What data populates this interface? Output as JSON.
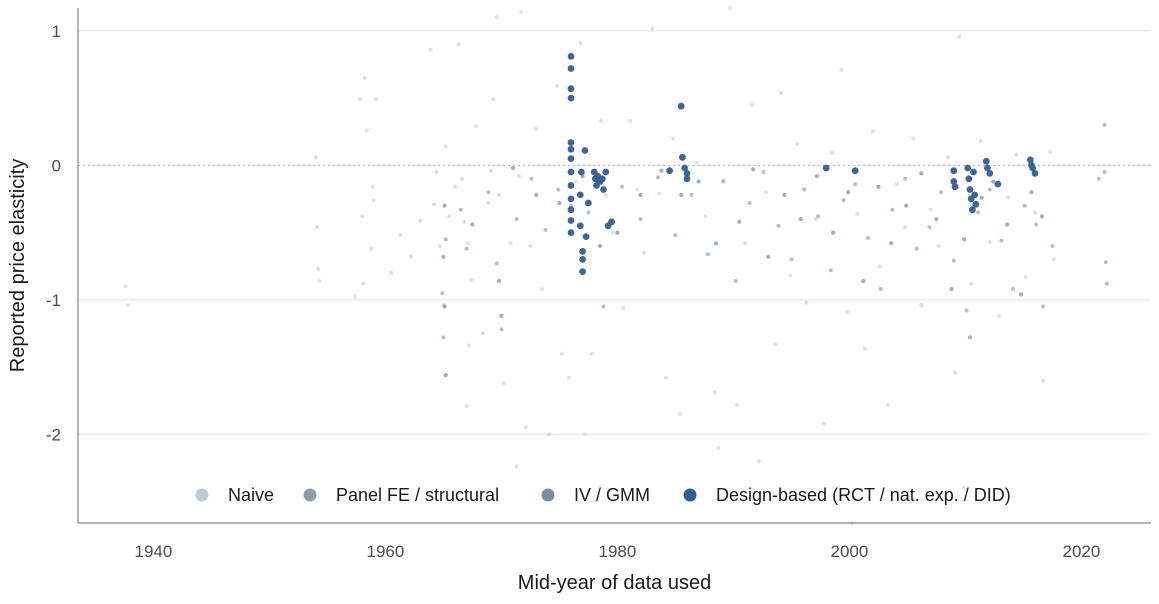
{
  "chart_data": {
    "type": "scatter",
    "title": "",
    "xlabel": "Mid-year of data used",
    "ylabel": "Reported price elasticity",
    "xlim": [
      1933.5,
      2026
    ],
    "ylim": [
      -2.66,
      1.17
    ],
    "x_ticks": [
      1940,
      1960,
      1980,
      2000,
      2020
    ],
    "y_ticks": [
      -2,
      -1,
      0,
      1
    ],
    "y_tick_labels": [
      "-2",
      "-1",
      "0",
      "1"
    ],
    "reference_line": 0,
    "grid": "horizontal",
    "legend_position": "bottom-inside",
    "series": [
      {
        "name": "Naive",
        "color": "#c0cad5",
        "points": [
          [
            1937.6,
            -0.9
          ],
          [
            1937.8,
            -1.04
          ],
          [
            1954.0,
            0.06
          ],
          [
            1954.1,
            -0.46
          ],
          [
            1954.2,
            -0.77
          ],
          [
            1954.3,
            -0.86
          ],
          [
            1957.4,
            -0.98
          ],
          [
            1957.8,
            0.49
          ],
          [
            1958.0,
            -0.38
          ],
          [
            1958.1,
            -0.88
          ],
          [
            1958.2,
            0.65
          ],
          [
            1958.4,
            0.26
          ],
          [
            1958.8,
            -0.62
          ],
          [
            1958.9,
            -0.16
          ],
          [
            1959.0,
            -0.26
          ],
          [
            1959.2,
            0.49
          ],
          [
            1960.5,
            -0.8
          ],
          [
            1961.3,
            -0.52
          ],
          [
            1962.2,
            -0.68
          ],
          [
            1963.0,
            -0.41
          ],
          [
            1963.9,
            0.86
          ],
          [
            1964.2,
            -0.29
          ],
          [
            1964.4,
            -0.05
          ],
          [
            1964.7,
            -0.6
          ],
          [
            1965.0,
            -1.04
          ],
          [
            1965.2,
            0.14
          ],
          [
            1965.5,
            -0.38
          ],
          [
            1966.0,
            -0.16
          ],
          [
            1966.3,
            0.9
          ],
          [
            1966.6,
            -0.1
          ],
          [
            1966.8,
            -0.42
          ],
          [
            1967.0,
            -1.79
          ],
          [
            1967.1,
            -0.58
          ],
          [
            1967.2,
            -1.34
          ],
          [
            1967.4,
            -0.85
          ],
          [
            1967.8,
            0.29
          ],
          [
            1968.4,
            -1.25
          ],
          [
            1968.9,
            -0.28
          ],
          [
            1969.1,
            -0.04
          ],
          [
            1969.3,
            0.49
          ],
          [
            1969.6,
            1.1
          ],
          [
            1969.8,
            -0.22
          ],
          [
            1970.2,
            -1.62
          ],
          [
            1970.8,
            -0.58
          ],
          [
            1971.3,
            -2.24
          ],
          [
            1971.5,
            -0.08
          ],
          [
            1971.7,
            1.14
          ],
          [
            1972.1,
            -1.95
          ],
          [
            1972.5,
            -0.6
          ],
          [
            1973.0,
            0.27
          ],
          [
            1973.5,
            -0.92
          ],
          [
            1974.1,
            -2.0
          ],
          [
            1974.8,
            0.59
          ],
          [
            1975.2,
            -1.4
          ],
          [
            1975.8,
            -1.58
          ],
          [
            1976.4,
            -0.12
          ],
          [
            1976.8,
            0.91
          ],
          [
            1977.2,
            -2.0
          ],
          [
            1977.8,
            -1.4
          ],
          [
            1978.6,
            0.33
          ],
          [
            1979.0,
            -0.22
          ],
          [
            1979.6,
            -0.5
          ],
          [
            1980.5,
            -1.06
          ],
          [
            1981.1,
            0.33
          ],
          [
            1981.7,
            -0.18
          ],
          [
            1982.3,
            -0.65
          ],
          [
            1983.0,
            1.02
          ],
          [
            1983.6,
            -0.21
          ],
          [
            1984.2,
            -1.58
          ],
          [
            1984.8,
            0.2
          ],
          [
            1985.4,
            -1.85
          ],
          [
            1986.1,
            -0.06
          ],
          [
            1986.8,
            0.02
          ],
          [
            1987.6,
            -0.38
          ],
          [
            1988.4,
            -1.69
          ],
          [
            1988.7,
            -2.1
          ],
          [
            1989.2,
            -0.11
          ],
          [
            1989.7,
            1.17
          ],
          [
            1990.3,
            -1.78
          ],
          [
            1991.0,
            -0.58
          ],
          [
            1991.6,
            0.45
          ],
          [
            1992.2,
            -2.2
          ],
          [
            1992.8,
            -0.2
          ],
          [
            1993.6,
            -1.33
          ],
          [
            1994.1,
            0.54
          ],
          [
            1994.9,
            -0.82
          ],
          [
            1995.5,
            0.16
          ],
          [
            1996.3,
            -1.02
          ],
          [
            1997.1,
            -0.4
          ],
          [
            1997.8,
            -1.92
          ],
          [
            1998.5,
            0.09
          ],
          [
            1999.3,
            0.71
          ],
          [
            1999.8,
            -1.09
          ],
          [
            2000.2,
            -2.66
          ],
          [
            2000.7,
            -0.36
          ],
          [
            2001.3,
            -1.36
          ],
          [
            2002.0,
            0.25
          ],
          [
            2002.6,
            -0.75
          ],
          [
            2003.3,
            -1.78
          ],
          [
            2004.1,
            -0.14
          ],
          [
            2004.8,
            -0.46
          ],
          [
            2005.5,
            0.2
          ],
          [
            2006.2,
            -1.04
          ],
          [
            2007.0,
            -0.33
          ],
          [
            2007.7,
            -0.6
          ],
          [
            2008.5,
            0.06
          ],
          [
            2009.1,
            -1.54
          ],
          [
            2009.5,
            0.96
          ],
          [
            2009.9,
            -2.4
          ],
          [
            2010.5,
            -0.88
          ],
          [
            2011.3,
            0.18
          ],
          [
            2012.1,
            -0.57
          ],
          [
            2012.9,
            -1.12
          ],
          [
            2013.7,
            -0.24
          ],
          [
            2014.4,
            0.08
          ],
          [
            2015.2,
            -0.83
          ],
          [
            2016.0,
            -0.35
          ],
          [
            2016.7,
            -1.6
          ],
          [
            2017.3,
            0.1
          ],
          [
            2017.6,
            -0.7
          ]
        ]
      },
      {
        "name": "Panel FE / structural",
        "color": "#8c9eb0",
        "points": [
          [
            1964.9,
            -0.95
          ],
          [
            1965.0,
            -1.28
          ],
          [
            1965.2,
            -0.55
          ],
          [
            1966.5,
            -0.33
          ],
          [
            1967.0,
            -0.62
          ],
          [
            1968.9,
            -0.2
          ],
          [
            1969.6,
            -0.73
          ],
          [
            1970.0,
            -1.22
          ],
          [
            1971.3,
            -0.4
          ],
          [
            1972.6,
            -0.1
          ],
          [
            1973.8,
            -0.48
          ],
          [
            1974.9,
            -0.18
          ],
          [
            1976.0,
            -0.3
          ],
          [
            1977.5,
            -0.35
          ],
          [
            1978.8,
            -1.05
          ],
          [
            1980.4,
            -0.16
          ],
          [
            1982.0,
            -0.4
          ],
          [
            1983.5,
            -0.09
          ],
          [
            1985.0,
            -0.52
          ],
          [
            1986.4,
            -0.22
          ],
          [
            1987.8,
            -0.66
          ],
          [
            1989.1,
            -0.12
          ],
          [
            1990.2,
            -0.86
          ],
          [
            1991.4,
            -0.28
          ],
          [
            1992.6,
            -0.05
          ],
          [
            1993.9,
            -0.45
          ],
          [
            1995.0,
            -0.7
          ],
          [
            1996.1,
            -0.18
          ],
          [
            1997.3,
            -0.38
          ],
          [
            1998.4,
            -0.78
          ],
          [
            1999.5,
            -0.26
          ],
          [
            2000.5,
            -0.14
          ],
          [
            2001.6,
            -0.54
          ],
          [
            2002.7,
            -0.92
          ],
          [
            2003.7,
            -0.33
          ],
          [
            2004.8,
            -0.1
          ],
          [
            2005.8,
            -0.62
          ],
          [
            2006.9,
            -0.46
          ],
          [
            2007.9,
            -0.2
          ],
          [
            2009.0,
            -0.71
          ],
          [
            2010.1,
            -1.08
          ],
          [
            2011.1,
            -0.35
          ],
          [
            2012.1,
            -0.18
          ],
          [
            2013.1,
            -0.56
          ],
          [
            2014.1,
            -0.92
          ],
          [
            2015.1,
            -0.3
          ],
          [
            2016.1,
            -0.44
          ],
          [
            2016.7,
            -1.05
          ],
          [
            2017.5,
            -0.6
          ],
          [
            2021.5,
            -0.1
          ],
          [
            2022.0,
            -0.05
          ],
          [
            2022.1,
            -0.72
          ],
          [
            2022.2,
            -0.88
          ],
          [
            2022.0,
            0.3
          ]
        ]
      },
      {
        "name": "IV / GMM",
        "color": "#788da3",
        "points": [
          [
            1965.0,
            -0.68
          ],
          [
            1965.1,
            -1.05
          ],
          [
            1965.2,
            -1.56
          ],
          [
            1965.1,
            -0.3
          ],
          [
            1967.5,
            -0.44
          ],
          [
            1969.8,
            -0.86
          ],
          [
            1970.0,
            -1.12
          ],
          [
            1971.0,
            -0.02
          ],
          [
            1973.0,
            -0.22
          ],
          [
            1975.0,
            -0.28
          ],
          [
            1976.0,
            -0.14
          ],
          [
            1977.0,
            -0.08
          ],
          [
            1978.5,
            -0.6
          ],
          [
            1980.0,
            -0.5
          ],
          [
            1982.0,
            -0.22
          ],
          [
            1983.8,
            -0.04
          ],
          [
            1985.5,
            -0.22
          ],
          [
            1987.0,
            -0.12
          ],
          [
            1988.5,
            -0.58
          ],
          [
            1990.5,
            -0.42
          ],
          [
            1991.7,
            -0.03
          ],
          [
            1993.0,
            -0.68
          ],
          [
            1994.4,
            -0.22
          ],
          [
            1995.8,
            -0.4
          ],
          [
            1997.2,
            -0.08
          ],
          [
            1998.6,
            -0.5
          ],
          [
            1999.9,
            -0.2
          ],
          [
            2001.2,
            -0.86
          ],
          [
            2002.5,
            -0.16
          ],
          [
            2003.6,
            -0.58
          ],
          [
            2004.9,
            -0.3
          ],
          [
            2006.2,
            -0.06
          ],
          [
            2007.5,
            -0.4
          ],
          [
            2008.8,
            -0.92
          ],
          [
            2009.9,
            -0.55
          ],
          [
            2010.4,
            -1.28
          ],
          [
            2011.4,
            -0.24
          ],
          [
            2012.4,
            -0.12
          ],
          [
            2013.6,
            -0.44
          ],
          [
            2014.8,
            -0.96
          ],
          [
            2015.7,
            -0.2
          ],
          [
            2016.6,
            -0.38
          ]
        ]
      },
      {
        "name": "Design-based (RCT / nat. exp. / DID)",
        "color": "#355e8f",
        "points": [
          [
            1976.0,
            0.81
          ],
          [
            1976.0,
            0.72
          ],
          [
            1976.0,
            0.57
          ],
          [
            1976.0,
            0.5
          ],
          [
            1976.0,
            0.17
          ],
          [
            1976.0,
            0.12
          ],
          [
            1976.0,
            0.05
          ],
          [
            1976.0,
            -0.05
          ],
          [
            1976.0,
            -0.15
          ],
          [
            1976.0,
            -0.25
          ],
          [
            1976.0,
            -0.33
          ],
          [
            1976.0,
            -0.41
          ],
          [
            1976.0,
            -0.5
          ],
          [
            1976.8,
            -0.22
          ],
          [
            1976.8,
            -0.45
          ],
          [
            1976.9,
            -0.05
          ],
          [
            1977.0,
            -0.64
          ],
          [
            1977.0,
            -0.7
          ],
          [
            1977.0,
            -0.79
          ],
          [
            1977.2,
            0.11
          ],
          [
            1977.3,
            -0.53
          ],
          [
            1977.5,
            -0.28
          ],
          [
            1978.0,
            -0.05
          ],
          [
            1978.1,
            -0.1
          ],
          [
            1978.2,
            -0.15
          ],
          [
            1978.3,
            -0.08
          ],
          [
            1978.5,
            -0.12
          ],
          [
            1978.7,
            -0.1
          ],
          [
            1978.8,
            -0.18
          ],
          [
            1979.0,
            -0.05
          ],
          [
            1979.2,
            -0.45
          ],
          [
            1979.5,
            -0.42
          ],
          [
            1984.5,
            -0.04
          ],
          [
            1985.5,
            0.44
          ],
          [
            1985.6,
            0.06
          ],
          [
            1985.8,
            -0.02
          ],
          [
            1986.0,
            -0.06
          ],
          [
            1986.0,
            -0.1
          ],
          [
            1998.0,
            -0.02
          ],
          [
            2000.5,
            -0.04
          ],
          [
            2009.0,
            -0.04
          ],
          [
            2009.0,
            -0.12
          ],
          [
            2009.1,
            -0.16
          ],
          [
            2010.2,
            -0.02
          ],
          [
            2010.3,
            -0.1
          ],
          [
            2010.4,
            -0.18
          ],
          [
            2010.5,
            -0.25
          ],
          [
            2010.6,
            -0.33
          ],
          [
            2010.7,
            -0.05
          ],
          [
            2010.8,
            -0.22
          ],
          [
            2010.9,
            -0.29
          ],
          [
            2011.8,
            0.03
          ],
          [
            2011.9,
            -0.02
          ],
          [
            2012.1,
            -0.06
          ],
          [
            2012.8,
            -0.14
          ],
          [
            2015.6,
            0.04
          ],
          [
            2015.8,
            -0.02
          ],
          [
            2016.0,
            -0.06
          ],
          [
            2015.7,
            0.0
          ]
        ]
      }
    ]
  }
}
